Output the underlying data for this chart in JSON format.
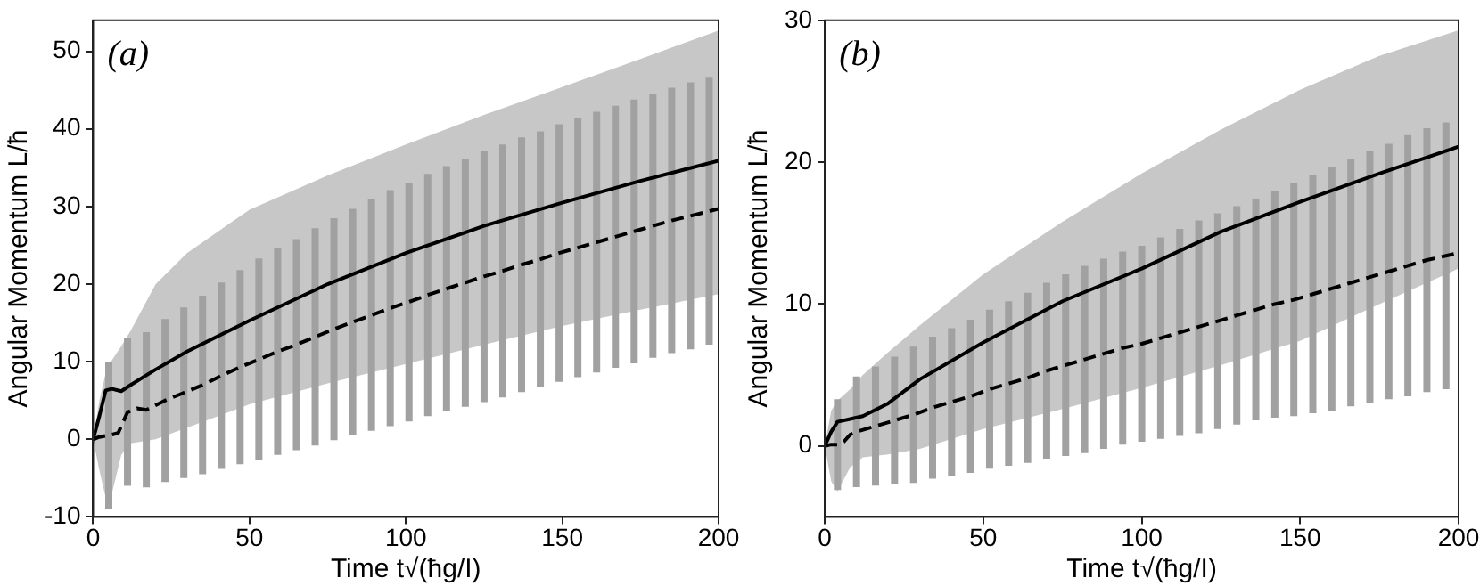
{
  "chart_data": [
    {
      "type": "line",
      "xlabel": "Time t√(ħg/I)",
      "ylabel": "Angular Momentum L/ħ",
      "xlim": [
        0,
        200
      ],
      "ylim": [
        -10,
        54
      ],
      "xticks": [
        0,
        50,
        100,
        150,
        200
      ],
      "yticks": [
        -10,
        0,
        10,
        20,
        30,
        40,
        50
      ],
      "grid": false,
      "legend": false,
      "marker": "none",
      "annotations": [
        "(a)"
      ],
      "series": [
        {
          "color": "#000000",
          "line_style": "solid",
          "x": [
            0,
            2,
            4,
            6,
            9,
            12,
            20,
            30,
            50,
            75,
            100,
            125,
            150,
            175,
            200
          ],
          "values": [
            0,
            3,
            6.3,
            6.5,
            6.2,
            7,
            9,
            11.3,
            15.3,
            20,
            24,
            27.5,
            30.5,
            33.3,
            35.9
          ],
          "lower": [
            0,
            -4,
            -7.5,
            -7,
            -2,
            -0.5,
            0,
            1.5,
            4.5,
            7.2,
            9.7,
            12.2,
            14.6,
            16.7,
            18.7
          ],
          "upper": [
            0,
            5,
            8.5,
            10.2,
            12,
            14,
            20,
            24,
            29.6,
            34,
            38,
            41.8,
            45.4,
            49,
            52.7
          ]
        },
        {
          "color": "#000000",
          "line_style": "dashed",
          "x": [
            0,
            2,
            5,
            8,
            11,
            14,
            17,
            23,
            29,
            35,
            41,
            47,
            53,
            59,
            65,
            71,
            77,
            83,
            89,
            95,
            101,
            107,
            113,
            119,
            125,
            131,
            137,
            143,
            149,
            155,
            161,
            167,
            173,
            179,
            185,
            191,
            197,
            200
          ],
          "values": [
            0,
            0.3,
            0.5,
            0.8,
            3.5,
            4,
            3.8,
            5,
            6,
            7,
            8.2,
            9.3,
            10.3,
            11.3,
            12.2,
            13.2,
            14.2,
            15.1,
            16,
            16.9,
            17.7,
            18.6,
            19.4,
            20.2,
            21,
            21.7,
            22.5,
            23.2,
            24,
            24.7,
            25.4,
            26.1,
            26.8,
            27.5,
            28.2,
            28.8,
            29.4,
            29.7
          ],
          "errors": [
            null,
            null,
            9.5,
            null,
            9.5,
            null,
            10,
            10.5,
            11,
            11.5,
            12,
            12.5,
            13,
            13.3,
            13.6,
            14,
            14.3,
            14.6,
            14.9,
            15.2,
            15.4,
            15.6,
            15.8,
            16,
            16.2,
            16.3,
            16.4,
            16.5,
            16.6,
            16.7,
            16.8,
            16.9,
            17,
            17,
            17.1,
            17.2,
            17.2,
            null
          ]
        }
      ]
    },
    {
      "type": "line",
      "xlabel": "Time t√(ħg/I)",
      "ylabel": "Angular Momentum L/ħ",
      "xlim": [
        0,
        200
      ],
      "ylim": [
        -5,
        30
      ],
      "xticks": [
        0,
        50,
        100,
        150,
        200
      ],
      "yticks": [
        0,
        10,
        20,
        30
      ],
      "grid": false,
      "legend": false,
      "marker": "none",
      "annotations": [
        "(b)"
      ],
      "series": [
        {
          "color": "#000000",
          "line_style": "solid",
          "x": [
            0,
            2,
            4,
            8,
            12,
            20,
            30,
            50,
            75,
            100,
            125,
            150,
            175,
            200
          ],
          "values": [
            0,
            1,
            1.7,
            1.9,
            2.1,
            3,
            4.7,
            7.3,
            10.2,
            12.5,
            15.1,
            17.2,
            19.2,
            21.1
          ],
          "lower": [
            0,
            -2.5,
            -3.2,
            -1.5,
            -0.8,
            -0.6,
            -0.2,
            1.2,
            2.6,
            4.1,
            5.7,
            7.4,
            10,
            12.5
          ],
          "upper": [
            0,
            2.5,
            3.2,
            4,
            5,
            6.6,
            8.5,
            12.1,
            15.8,
            19.2,
            22.3,
            25.1,
            27.5,
            29.3
          ]
        },
        {
          "color": "#000000",
          "line_style": "dashed",
          "x": [
            0,
            2,
            4,
            6,
            8,
            10,
            16,
            22,
            28,
            34,
            40,
            46,
            52,
            58,
            64,
            70,
            76,
            82,
            88,
            94,
            100,
            106,
            112,
            118,
            124,
            130,
            136,
            142,
            148,
            154,
            160,
            166,
            172,
            178,
            184,
            190,
            196,
            200
          ],
          "values": [
            0,
            0.1,
            0.1,
            0.3,
            0.8,
            1,
            1.4,
            1.8,
            2.2,
            2.7,
            3.1,
            3.5,
            4,
            4.4,
            4.8,
            5.3,
            5.7,
            6.1,
            6.5,
            6.9,
            7.2,
            7.6,
            8,
            8.4,
            8.8,
            9.2,
            9.6,
            10,
            10.3,
            10.7,
            11.1,
            11.5,
            11.9,
            12.3,
            12.7,
            13.1,
            13.4,
            13.6
          ],
          "errors": [
            null,
            null,
            3.2,
            null,
            null,
            3.9,
            4.2,
            4.5,
            4.8,
            5,
            5.2,
            5.4,
            5.6,
            5.8,
            6,
            6.2,
            6.4,
            6.6,
            6.7,
            6.8,
            6.9,
            7.1,
            7.3,
            7.5,
            7.6,
            7.7,
            7.8,
            8,
            8.2,
            8.4,
            8.6,
            8.7,
            8.9,
            9,
            9.2,
            9.3,
            9.4,
            null
          ]
        }
      ]
    }
  ]
}
